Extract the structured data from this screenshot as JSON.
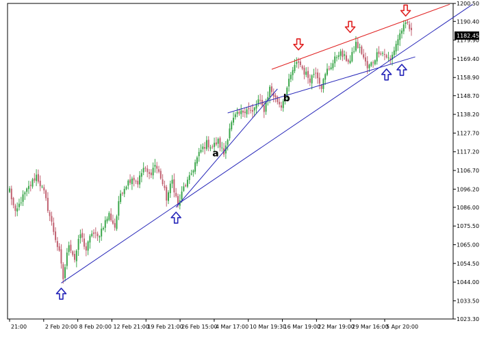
{
  "colors": {
    "background": "#ffffff",
    "axis": "#000000",
    "candle_up": "#3aa64a",
    "candle_down": "#c06070",
    "channel_red": "#e02020",
    "trend_blue": "#2424b8",
    "price_tag_bg": "#000000",
    "price_tag_fg": "#ffffff"
  },
  "chart_data": {
    "type": "candlestick",
    "ylim": [
      1023.3,
      1200.5
    ],
    "price_ticks": [
      "1200.50",
      "1190.40",
      "1179.90",
      "1169.40",
      "1158.90",
      "1148.70",
      "1138.20",
      "1127.70",
      "1117.20",
      "1106.70",
      "1096.20",
      "1086.00",
      "1075.50",
      "1065.00",
      "1054.50",
      "1044.00",
      "1033.50",
      "1023.30"
    ],
    "current_price": "1182.45",
    "time_ticks": [
      "21:00",
      "2 Feb 20:00",
      "8 Feb 20:00",
      "12 Feb 21:00",
      "19 Feb 21:00",
      "26 Feb 15:00",
      "4 Mar 17:00",
      "10 Mar 19:30",
      "16 Mar 19:00",
      "22 Mar 19:00",
      "29 Mar 16:00",
      "5 Apr 20:00"
    ],
    "waypoints": [
      [
        0,
        1096
      ],
      [
        3,
        1082
      ],
      [
        6,
        1090
      ],
      [
        10,
        1097
      ],
      [
        14,
        1104
      ],
      [
        18,
        1094
      ],
      [
        22,
        1077
      ],
      [
        26,
        1060
      ],
      [
        28,
        1046
      ],
      [
        31,
        1066
      ],
      [
        34,
        1057
      ],
      [
        37,
        1071
      ],
      [
        40,
        1062
      ],
      [
        43,
        1072
      ],
      [
        46,
        1069
      ],
      [
        49,
        1076
      ],
      [
        52,
        1082
      ],
      [
        55,
        1075
      ],
      [
        58,
        1094
      ],
      [
        61,
        1099
      ],
      [
        64,
        1103
      ],
      [
        67,
        1100
      ],
      [
        70,
        1108
      ],
      [
        73,
        1104
      ],
      [
        76,
        1110
      ],
      [
        79,
        1103
      ],
      [
        82,
        1091
      ],
      [
        85,
        1101
      ],
      [
        88,
        1087
      ],
      [
        91,
        1097
      ],
      [
        94,
        1102
      ],
      [
        97,
        1111
      ],
      [
        100,
        1118
      ],
      [
        103,
        1122
      ],
      [
        106,
        1120
      ],
      [
        109,
        1123
      ],
      [
        112,
        1116
      ],
      [
        115,
        1131
      ],
      [
        118,
        1137
      ],
      [
        121,
        1139
      ],
      [
        124,
        1142
      ],
      [
        127,
        1139
      ],
      [
        130,
        1146
      ],
      [
        133,
        1141
      ],
      [
        136,
        1153
      ],
      [
        139,
        1147
      ],
      [
        142,
        1143
      ],
      [
        145,
        1153
      ],
      [
        148,
        1163
      ],
      [
        151,
        1168
      ],
      [
        154,
        1162
      ],
      [
        157,
        1158
      ],
      [
        160,
        1163
      ],
      [
        163,
        1154
      ],
      [
        166,
        1163
      ],
      [
        169,
        1167
      ],
      [
        172,
        1173
      ],
      [
        175,
        1170
      ],
      [
        178,
        1168
      ],
      [
        181,
        1178
      ],
      [
        184,
        1173
      ],
      [
        187,
        1164
      ],
      [
        190,
        1168
      ],
      [
        193,
        1174
      ],
      [
        196,
        1172
      ],
      [
        199,
        1168
      ],
      [
        202,
        1178
      ],
      [
        205,
        1186
      ],
      [
        208,
        1189
      ],
      [
        210,
        1184
      ]
    ],
    "candle_count": 211,
    "annotations": [
      "a",
      "b"
    ],
    "down_arrows": [
      {
        "bar": 151,
        "price": 1177.5
      },
      {
        "bar": 178,
        "price": 1187.3
      },
      {
        "bar": 207,
        "price": 1196.5
      }
    ],
    "up_arrows": [
      {
        "bar": 27,
        "price": 1037.5
      },
      {
        "bar": 87,
        "price": 1080.2
      },
      {
        "bar": 197,
        "price": 1160.6
      },
      {
        "bar": 205,
        "price": 1163.2
      }
    ],
    "lines": [
      {
        "name": "channel-top",
        "color": "red",
        "x1": 137,
        "y1": 1163.5,
        "x2": 230,
        "y2": 1200.0
      },
      {
        "name": "long-trendline",
        "color": "blue",
        "x1": 27,
        "y1": 1043.5,
        "x2": 242,
        "y2": 1200.0
      },
      {
        "name": "channel-bottom",
        "color": "blue",
        "x1": 114,
        "y1": 1139.0,
        "x2": 212,
        "y2": 1170.5
      },
      {
        "name": "steep-trendline",
        "color": "blue",
        "x1": 87,
        "y1": 1086.0,
        "x2": 140,
        "y2": 1152.5
      }
    ]
  }
}
